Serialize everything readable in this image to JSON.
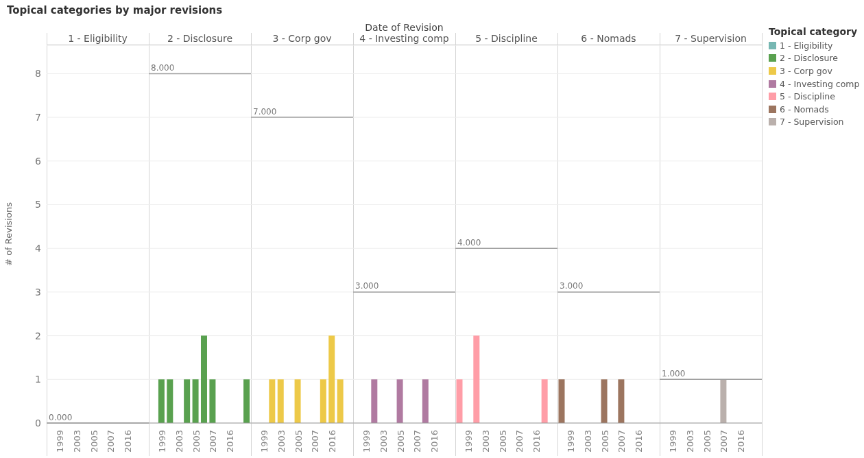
{
  "chart_data": [
    {
      "type": "bar",
      "title": "1 - Eligibility",
      "annotations": [
        "Topical categories by major revisions"
      ],
      "ylabel": "# of Revisions",
      "legend_title": "Topical category",
      "legend": "right",
      "grid": "y",
      "categories": [
        null,
        "1999",
        null,
        "2003",
        null,
        "2005",
        null,
        "2007",
        null,
        "2016",
        null,
        null
      ],
      "ylim": [
        0,
        8.65
      ],
      "yticks": [
        0,
        1,
        2,
        3,
        4,
        5,
        6,
        7,
        8
      ],
      "series": [
        {
          "name": "1 - Eligibility",
          "color": "#76b7b2",
          "values": [
            null,
            null,
            null,
            null,
            null,
            null,
            null,
            null,
            null,
            null,
            null,
            null
          ]
        }
      ],
      "ref_lines": [
        {
          "axis": "y",
          "value": 0,
          "label": "0.000",
          "color": "#a0a0a0"
        }
      ]
    },
    {
      "type": "bar",
      "title": "2 - Disclosure",
      "grid": "y",
      "tick_labels": "x",
      "categories": [
        null,
        "1999",
        null,
        "2003",
        null,
        "2005",
        null,
        "2007",
        null,
        "2016",
        null,
        null
      ],
      "ylim": [
        0,
        8.65
      ],
      "yticks": [
        0,
        1,
        2,
        3,
        4,
        5,
        6,
        7,
        8
      ],
      "series": [
        {
          "name": "2 - Disclosure",
          "color": "#59a14f",
          "values": [
            null,
            1,
            1,
            null,
            1,
            1,
            2,
            1,
            null,
            null,
            null,
            1
          ]
        }
      ],
      "ref_lines": [
        {
          "axis": "y",
          "value": 8,
          "label": "8.000",
          "color": "#a0a0a0"
        }
      ]
    },
    {
      "type": "bar",
      "title": "3 - Corp gov",
      "grid": "y",
      "tick_labels": "x",
      "categories": [
        null,
        "1999",
        null,
        "2003",
        null,
        "2005",
        null,
        "2007",
        null,
        "2016",
        null,
        null
      ],
      "ylim": [
        0,
        8.65
      ],
      "yticks": [
        0,
        1,
        2,
        3,
        4,
        5,
        6,
        7,
        8
      ],
      "series": [
        {
          "name": "3 - Corp gov",
          "color": "#edc948",
          "values": [
            null,
            null,
            1,
            1,
            null,
            1,
            null,
            null,
            1,
            2,
            1,
            null
          ]
        }
      ],
      "ref_lines": [
        {
          "axis": "y",
          "value": 7,
          "label": "7.000",
          "color": "#a0a0a0"
        }
      ]
    },
    {
      "type": "bar",
      "title": "4 - Investing comp",
      "xlabel": "Date of Revision",
      "grid": "y",
      "tick_labels": "x",
      "categories": [
        null,
        "1999",
        null,
        "2003",
        null,
        "2005",
        null,
        "2007",
        null,
        "2016",
        null,
        null
      ],
      "ylim": [
        0,
        8.65
      ],
      "yticks": [
        0,
        1,
        2,
        3,
        4,
        5,
        6,
        7,
        8
      ],
      "series": [
        {
          "name": "4 - Investing comp",
          "color": "#b07aa1",
          "values": [
            null,
            null,
            1,
            null,
            null,
            1,
            null,
            null,
            1,
            null,
            null,
            null
          ]
        }
      ],
      "ref_lines": [
        {
          "axis": "y",
          "value": 3,
          "label": "3.000",
          "color": "#a0a0a0"
        }
      ]
    },
    {
      "type": "bar",
      "title": "5 - Discipline",
      "grid": "y",
      "tick_labels": "x",
      "categories": [
        null,
        "1999",
        null,
        "2003",
        null,
        "2005",
        null,
        "2007",
        null,
        "2016",
        null,
        null
      ],
      "ylim": [
        0,
        8.65
      ],
      "yticks": [
        0,
        1,
        2,
        3,
        4,
        5,
        6,
        7,
        8
      ],
      "series": [
        {
          "name": "5 - Discipline",
          "color": "#ff9da7",
          "values": [
            1,
            null,
            2,
            null,
            null,
            null,
            null,
            null,
            null,
            null,
            1,
            null
          ]
        }
      ],
      "ref_lines": [
        {
          "axis": "y",
          "value": 4,
          "label": "4.000",
          "color": "#a0a0a0"
        }
      ]
    },
    {
      "type": "bar",
      "title": "6 - Nomads",
      "grid": "y",
      "tick_labels": "x",
      "categories": [
        null,
        "1999",
        null,
        "2003",
        null,
        "2005",
        null,
        "2007",
        null,
        "2016",
        null,
        null
      ],
      "ylim": [
        0,
        8.65
      ],
      "yticks": [
        0,
        1,
        2,
        3,
        4,
        5,
        6,
        7,
        8
      ],
      "series": [
        {
          "name": "6 - Nomads",
          "color": "#9c755f",
          "values": [
            1,
            null,
            null,
            null,
            null,
            1,
            null,
            1,
            null,
            null,
            null,
            null
          ]
        }
      ],
      "ref_lines": [
        {
          "axis": "y",
          "value": 3,
          "label": "3.000",
          "color": "#a0a0a0"
        }
      ]
    },
    {
      "type": "bar",
      "title": "7 - Supervision",
      "grid": "y",
      "tick_labels": "x",
      "categories": [
        null,
        "1999",
        null,
        "2003",
        null,
        "2005",
        null,
        "2007",
        null,
        "2016",
        null,
        null
      ],
      "ylim": [
        0,
        8.65
      ],
      "yticks": [
        0,
        1,
        2,
        3,
        4,
        5,
        6,
        7,
        8
      ],
      "series": [
        {
          "name": "7 - Supervision",
          "color": "#bab0ac",
          "values": [
            null,
            null,
            null,
            null,
            null,
            null,
            null,
            1,
            null,
            null,
            null,
            null
          ]
        }
      ],
      "ref_lines": [
        {
          "axis": "y",
          "value": 1,
          "label": "1.000",
          "color": "#a0a0a0"
        }
      ]
    }
  ]
}
